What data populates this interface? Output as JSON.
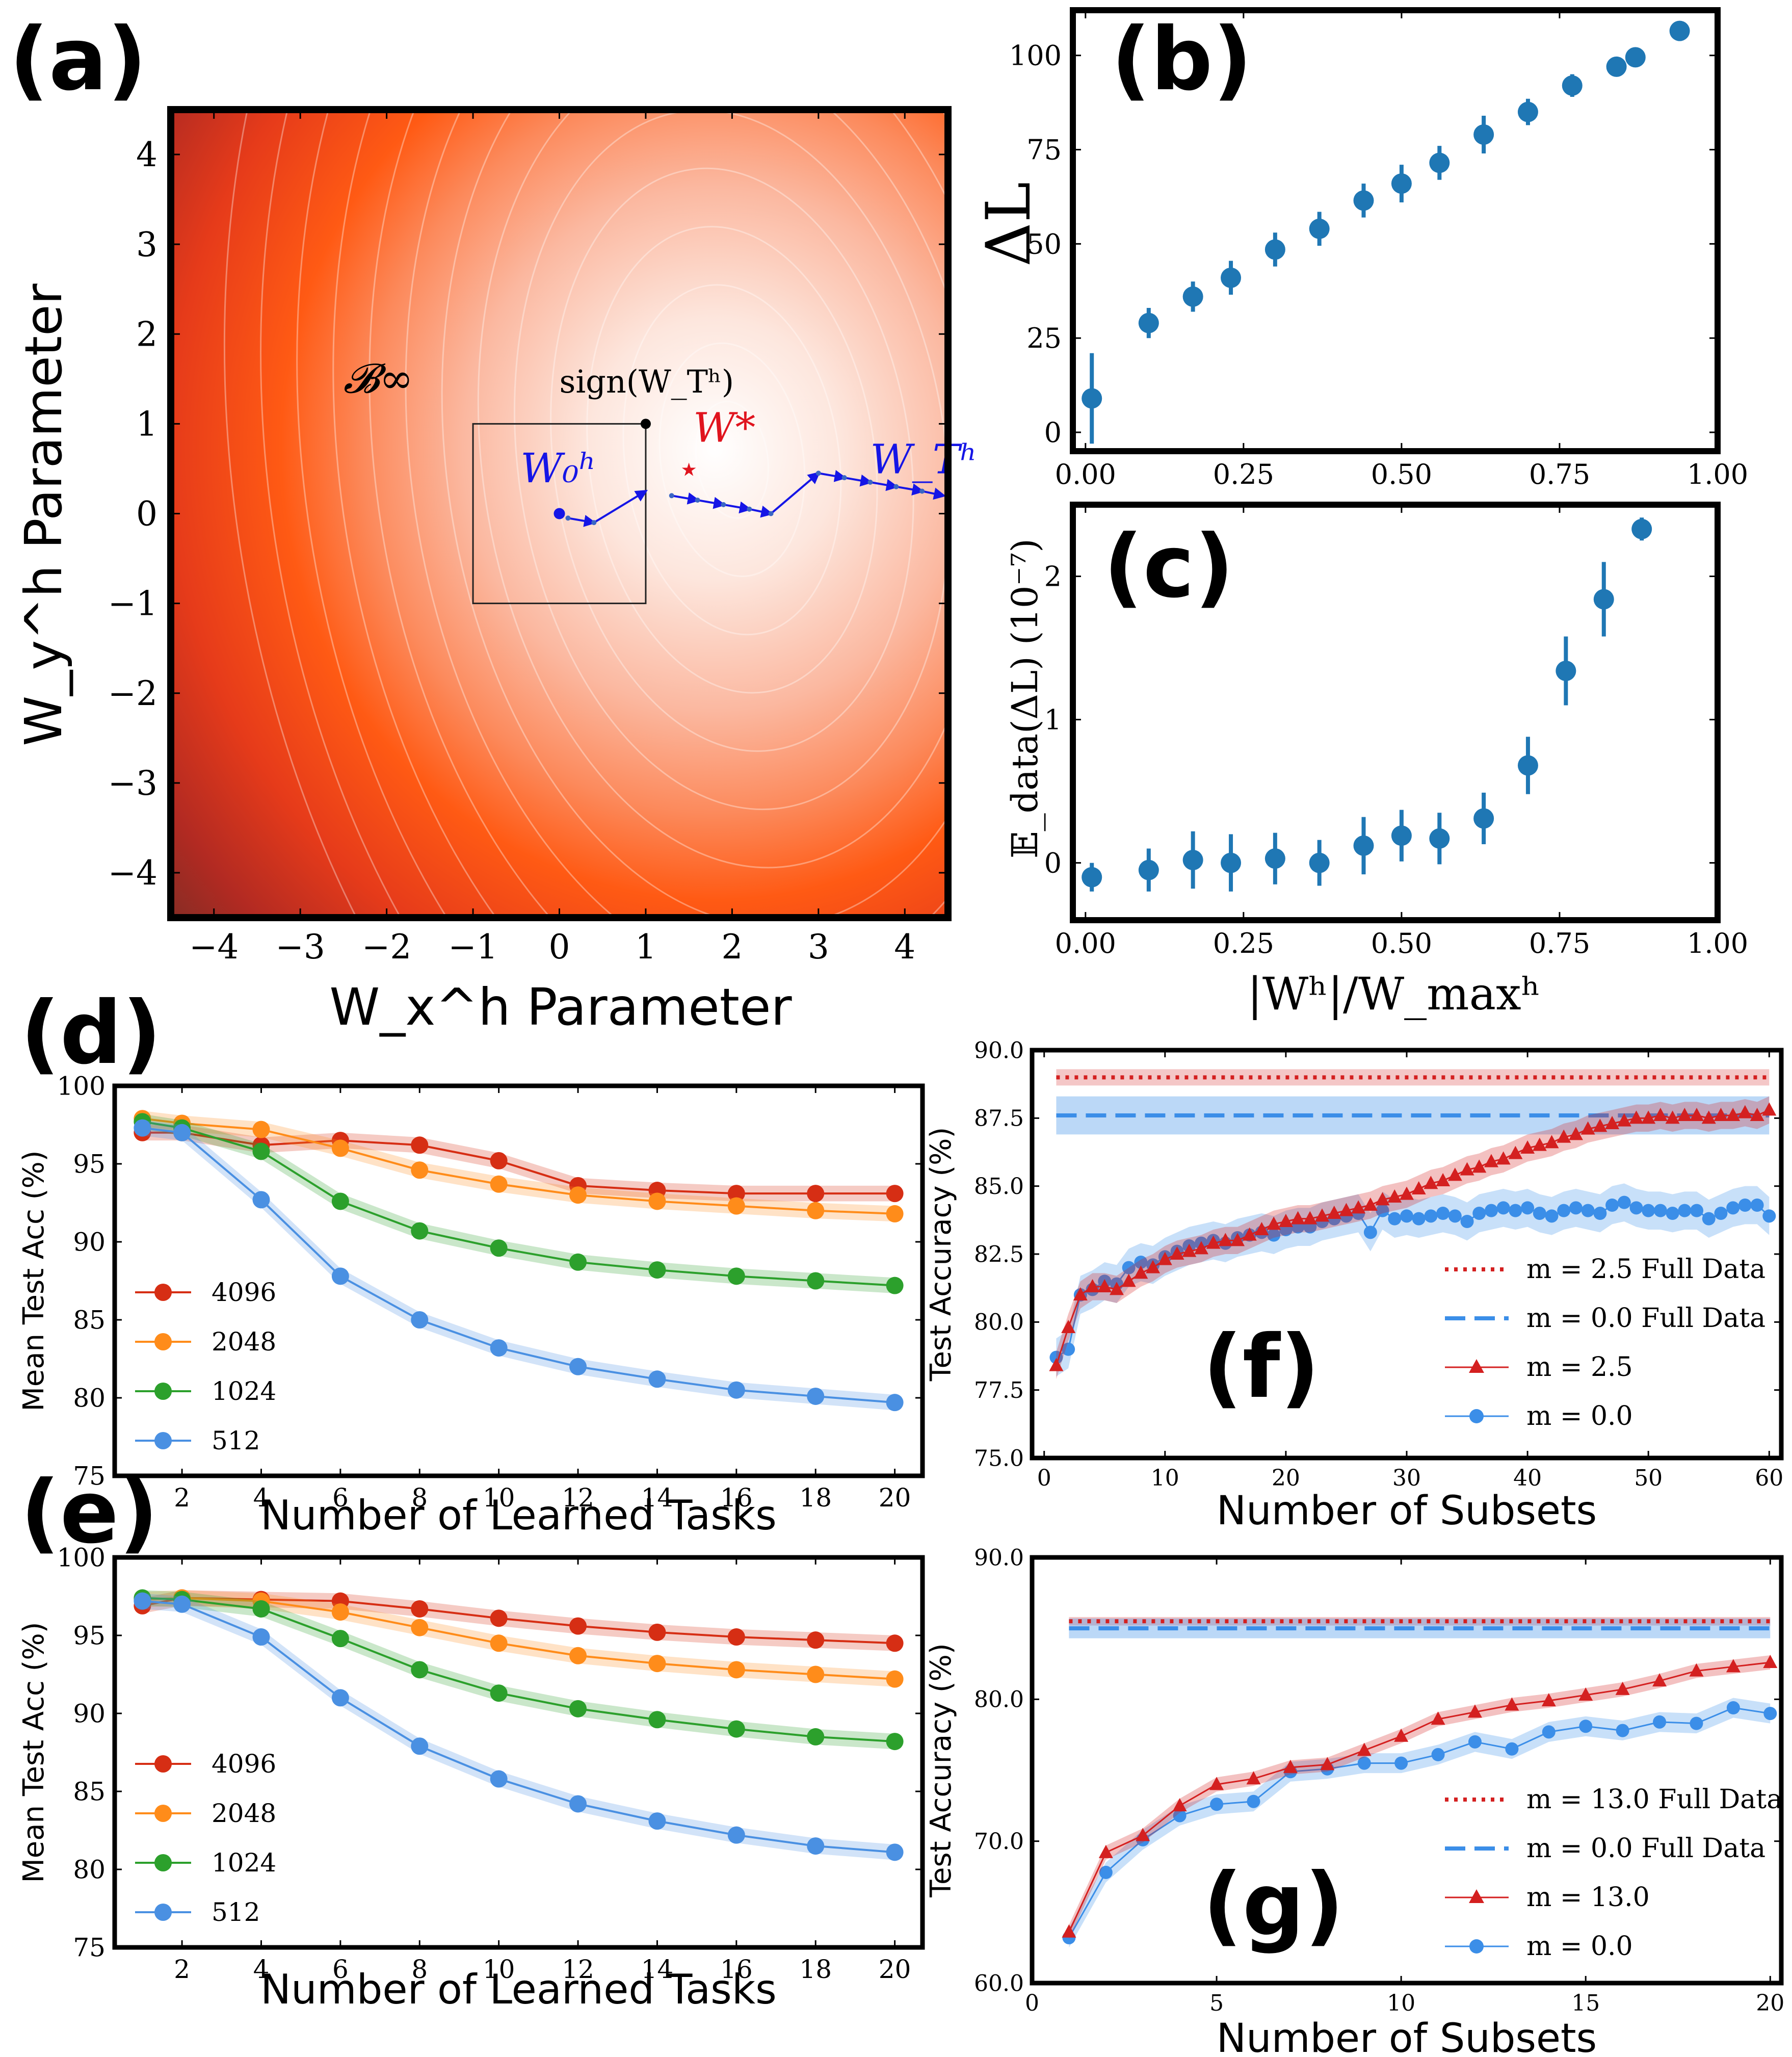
{
  "colors": {
    "red": "#d62728",
    "blue": "#1f77b4",
    "c4096": "#d62e14",
    "c2048": "#ff8c1a",
    "c1024": "#2ca02c",
    "c512": "#4a90e2",
    "lightblue": "#3b8ee8",
    "mred": "#d42020"
  },
  "chart_data": [
    {
      "id": "a",
      "type": "heatmap",
      "label": "(a)",
      "xlabel": "W_x^h Parameter",
      "ylabel": "W_y^h Parameter",
      "xlim": [
        -4.5,
        4.5
      ],
      "ylim": [
        -4.5,
        4.5
      ],
      "xticks": [
        "−4",
        "−3",
        "−2",
        "−1",
        "0",
        "1",
        "2",
        "3",
        "4"
      ],
      "yticks": [
        "4",
        "3",
        "2",
        "1",
        "0",
        "−1",
        "−2",
        "−3",
        "−4"
      ],
      "box": {
        "label": "𝓑∞",
        "xmin": -1,
        "xmax": 1,
        "ymin": -1,
        "ymax": 1
      },
      "w0": {
        "label": "W₀ʰ",
        "x": 0,
        "y": 0
      },
      "wstar": {
        "label": "W*",
        "x": 1.5,
        "y": 0.5
      },
      "sign_point": {
        "label": "sign(W_Tʰ)",
        "x": 1,
        "y": 1
      },
      "wT": {
        "label": "W_Tʰ"
      },
      "trajectory": [
        [
          0.1,
          -0.05
        ],
        [
          0.4,
          -0.1
        ],
        [
          1,
          0.25
        ],
        [
          1.3,
          0.2
        ],
        [
          1.6,
          0.15
        ],
        [
          1.9,
          0.1
        ],
        [
          2.2,
          0.05
        ],
        [
          2.45,
          0
        ],
        [
          3,
          0.45
        ],
        [
          3.3,
          0.4
        ],
        [
          3.6,
          0.35
        ],
        [
          3.9,
          0.3
        ],
        [
          4.2,
          0.25
        ],
        [
          4.45,
          0.2
        ]
      ]
    },
    {
      "id": "b",
      "type": "scatter",
      "label": "(b)",
      "ylabel": "ΔL",
      "xlim": [
        -0.02,
        1.0
      ],
      "ylim": [
        -5,
        112
      ],
      "xticks": [
        "0.00",
        "0.25",
        "0.50",
        "0.75",
        "1.00"
      ],
      "yticks": [
        "0",
        "25",
        "50",
        "75",
        "100"
      ],
      "x": [
        0.01,
        0.1,
        0.17,
        0.23,
        0.3,
        0.37,
        0.44,
        0.5,
        0.56,
        0.63,
        0.7,
        0.77,
        0.84,
        0.87,
        0.94
      ],
      "y": [
        9,
        29,
        36,
        41,
        48.5,
        54,
        61.5,
        66,
        71.5,
        79,
        85,
        92,
        97,
        99.5,
        106.5
      ],
      "err": [
        12,
        4,
        4,
        4.5,
        4.5,
        4.5,
        4.5,
        5,
        4.5,
        5,
        3.5,
        3,
        2.5,
        2.5,
        2
      ]
    },
    {
      "id": "c",
      "type": "scatter",
      "label": "(c)",
      "ylabel": "𝔼_data(ΔL) (10⁻⁷)",
      "xlabel": "|Wʰ|/W_maxʰ",
      "xlim": [
        -0.02,
        1.0
      ],
      "ylim": [
        -0.4,
        2.5
      ],
      "xticks": [
        "0.00",
        "0.25",
        "0.50",
        "0.75",
        "1.00"
      ],
      "yticks": [
        "0",
        "1",
        "2"
      ],
      "x": [
        0.01,
        0.1,
        0.17,
        0.23,
        0.3,
        0.37,
        0.44,
        0.5,
        0.56,
        0.63,
        0.7,
        0.76,
        0.82,
        0.88
      ],
      "y": [
        -0.1,
        -0.05,
        0.02,
        0,
        0.03,
        0,
        0.12,
        0.19,
        0.17,
        0.31,
        0.68,
        1.34,
        1.84,
        2.33
      ],
      "err": [
        0.1,
        0.15,
        0.2,
        0.2,
        0.18,
        0.16,
        0.2,
        0.18,
        0.18,
        0.18,
        0.2,
        0.24,
        0.26,
        0.08
      ]
    },
    {
      "id": "d",
      "type": "line",
      "label": "(d)",
      "xlabel": "Number of Learned Tasks",
      "ylabel": "Mean Test Acc (%)",
      "xlim": [
        0.3,
        20.7
      ],
      "ylim": [
        75,
        100
      ],
      "xticks": [
        "2",
        "4",
        "6",
        "8",
        "10",
        "12",
        "14",
        "16",
        "18",
        "20"
      ],
      "yticks": [
        "75",
        "80",
        "85",
        "90",
        "95",
        "100"
      ],
      "x": [
        1,
        2,
        4,
        6,
        8,
        10,
        12,
        14,
        16,
        18,
        20
      ],
      "series": [
        {
          "name": "4096",
          "color": "#d62e14",
          "values": [
            97,
            97,
            96.2,
            96.5,
            96.2,
            95.2,
            93.6,
            93.3,
            93.1,
            93.1,
            93.1
          ]
        },
        {
          "name": "2048",
          "color": "#ff8c1a",
          "values": [
            97.9,
            97.6,
            97.2,
            96,
            94.6,
            93.7,
            93,
            92.6,
            92.3,
            92,
            91.8
          ]
        },
        {
          "name": "1024",
          "color": "#2ca02c",
          "values": [
            97.7,
            97.3,
            95.8,
            92.6,
            90.7,
            89.6,
            88.7,
            88.2,
            87.8,
            87.5,
            87.2
          ]
        },
        {
          "name": "512",
          "color": "#4a90e2",
          "values": [
            97.3,
            97,
            92.7,
            87.8,
            85,
            83.2,
            82,
            81.2,
            80.5,
            80.1,
            79.7
          ]
        }
      ]
    },
    {
      "id": "e",
      "type": "line",
      "label": "(e)",
      "xlabel": "Number of Learned Tasks",
      "ylabel": "Mean Test Acc (%)",
      "xlim": [
        0.3,
        20.7
      ],
      "ylim": [
        75,
        100
      ],
      "xticks": [
        "2",
        "4",
        "6",
        "8",
        "10",
        "12",
        "14",
        "16",
        "18",
        "20"
      ],
      "yticks": [
        "75",
        "80",
        "85",
        "90",
        "95",
        "100"
      ],
      "x": [
        1,
        2,
        4,
        6,
        8,
        10,
        12,
        14,
        16,
        18,
        20
      ],
      "series": [
        {
          "name": "4096",
          "color": "#d62e14",
          "values": [
            96.9,
            97.4,
            97.3,
            97.2,
            96.7,
            96.1,
            95.6,
            95.2,
            94.9,
            94.7,
            94.5
          ]
        },
        {
          "name": "2048",
          "color": "#ff8c1a",
          "values": [
            97.3,
            97.4,
            97.2,
            96.5,
            95.5,
            94.5,
            93.7,
            93.2,
            92.8,
            92.5,
            92.2
          ]
        },
        {
          "name": "1024",
          "color": "#2ca02c",
          "values": [
            97.4,
            97.3,
            96.7,
            94.8,
            92.8,
            91.3,
            90.3,
            89.6,
            89,
            88.5,
            88.2
          ]
        },
        {
          "name": "512",
          "color": "#4a90e2",
          "values": [
            97.2,
            97,
            94.9,
            91,
            87.9,
            85.8,
            84.2,
            83.1,
            82.2,
            81.5,
            81.1
          ]
        }
      ]
    },
    {
      "id": "f",
      "type": "line",
      "label": "(f)",
      "xlabel": "Number of Subsets",
      "ylabel": "Test Accuracy (%)",
      "xlim": [
        -1,
        61
      ],
      "ylim": [
        75,
        90
      ],
      "xticks": [
        "0",
        "10",
        "20",
        "30",
        "40",
        "50",
        "60"
      ],
      "yticks": [
        "75.0",
        "77.5",
        "80.0",
        "82.5",
        "85.0",
        "87.5",
        "90.0"
      ],
      "legend": [
        "m = 2.5 Full Data",
        "m = 0.0 Full Data",
        "m = 2.5",
        "m = 0.0"
      ],
      "full_red": 89.0,
      "full_blue": 87.6,
      "series": [
        {
          "name": "m = 2.5",
          "color": "#d42020",
          "values": [
            78.4,
            79.8,
            81,
            81.3,
            81.3,
            81.2,
            81.5,
            81.8,
            82,
            82.3,
            82.5,
            82.6,
            82.7,
            82.9,
            83,
            83,
            83.2,
            83.4,
            83.6,
            83.7,
            83.8,
            83.8,
            83.9,
            84,
            84.1,
            84.2,
            84.3,
            84.5,
            84.6,
            84.7,
            84.9,
            85.1,
            85.2,
            85.4,
            85.6,
            85.7,
            85.9,
            86,
            86.2,
            86.4,
            86.5,
            86.6,
            86.8,
            86.9,
            87.1,
            87.2,
            87.3,
            87.4,
            87.5,
            87.5,
            87.6,
            87.5,
            87.6,
            87.6,
            87.5,
            87.6,
            87.6,
            87.7,
            87.6,
            87.8
          ]
        },
        {
          "name": "m = 0.0",
          "color": "#3b8ee8",
          "values": [
            78.7,
            79,
            81,
            81.2,
            81.5,
            81.4,
            82,
            82.2,
            82.1,
            82.4,
            82.6,
            82.8,
            82.9,
            83,
            82.9,
            83.1,
            83.2,
            83.3,
            83.2,
            83.4,
            83.5,
            83.5,
            83.7,
            83.8,
            83.9,
            84,
            83.3,
            84.1,
            83.8,
            83.9,
            83.8,
            83.9,
            84,
            83.9,
            83.7,
            84,
            84.1,
            84.2,
            84.1,
            84.2,
            84,
            83.9,
            84.1,
            84.2,
            84.1,
            84,
            84.3,
            84.4,
            84.2,
            84.1,
            84.1,
            84,
            84.1,
            84.1,
            83.8,
            84,
            84.2,
            84.3,
            84.3,
            83.9
          ]
        }
      ]
    },
    {
      "id": "g",
      "type": "line",
      "label": "(g)",
      "xlabel": "Number of Subsets",
      "ylabel": "Test Accuracy (%)",
      "xlim": [
        0,
        20.3
      ],
      "ylim": [
        60,
        90
      ],
      "xticks": [
        "0",
        "5",
        "10",
        "15",
        "20"
      ],
      "yticks": [
        "60.0",
        "70.0",
        "80.0",
        "90.0"
      ],
      "legend": [
        "m = 13.0 Full Data",
        "m = 0.0 Full Data",
        "m = 13.0",
        "m = 0.0"
      ],
      "full_red": 85.5,
      "full_blue": 85.0,
      "series": [
        {
          "name": "m = 13.0",
          "color": "#d42020",
          "values": [
            63.6,
            69.2,
            70.4,
            72.5,
            74,
            74.4,
            75.2,
            75.4,
            76.4,
            77.4,
            78.6,
            79.1,
            79.6,
            79.9,
            80.3,
            80.7,
            81.3,
            82,
            82.3,
            82.6
          ]
        },
        {
          "name": "m = 0.0",
          "color": "#3b8ee8",
          "values": [
            63.2,
            67.8,
            70.1,
            71.8,
            72.6,
            72.8,
            74.9,
            75.1,
            75.5,
            75.5,
            76.1,
            77,
            76.5,
            77.7,
            78.1,
            77.8,
            78.4,
            78.3,
            79.4,
            79
          ]
        }
      ]
    }
  ]
}
